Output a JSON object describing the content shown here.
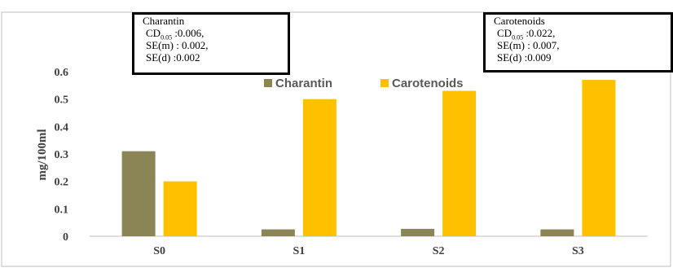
{
  "chart_data": {
    "type": "bar",
    "categories": [
      "S0",
      "S1",
      "S2",
      "S3"
    ],
    "series": [
      {
        "name": "Charantin",
        "values": [
          0.31,
          0.025,
          0.027,
          0.025
        ],
        "color": "#8b8455"
      },
      {
        "name": "Carotenoids",
        "values": [
          0.2,
          0.5,
          0.53,
          0.57
        ],
        "color": "#ffc000"
      }
    ],
    "ylabel": "mg/100ml",
    "xlabel": "",
    "ylim": [
      0,
      0.6
    ],
    "yticks": [
      "0",
      "0.1",
      "0.2",
      "0.3",
      "0.4",
      "0.5",
      "0.6"
    ],
    "legend": "top-center",
    "grid": false,
    "annotations": [
      {
        "title": "Charantin",
        "cd_prefix": "CD",
        "cd_sub": "0.05",
        "cd_value": " :0.006,",
        "sem": "SE(m) : 0.002,",
        "sed": "SE(d) :0.002"
      },
      {
        "title": "Carotenoids",
        "cd_prefix": "CD",
        "cd_sub": "0.05",
        "cd_value": " :0.022,",
        "sem": "SE(m) : 0.007,",
        "sed": "SE(d) :0.009"
      }
    ]
  }
}
